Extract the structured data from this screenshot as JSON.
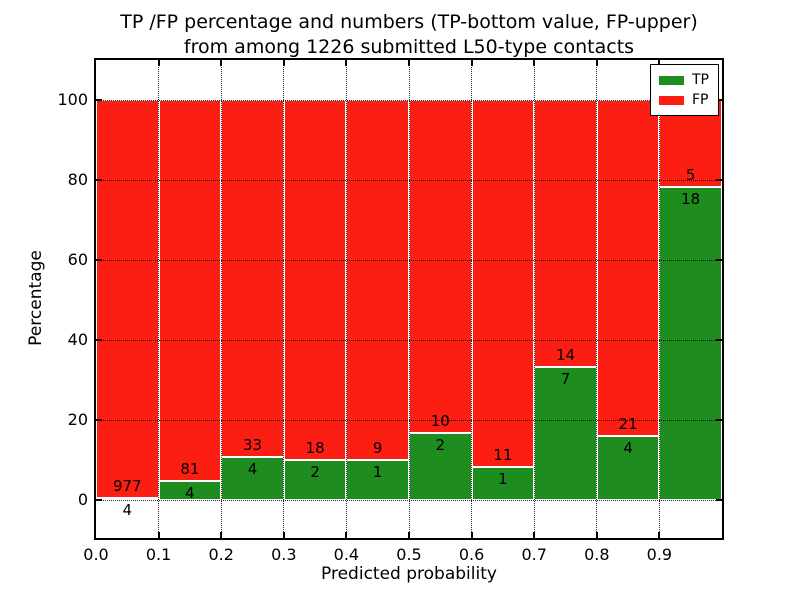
{
  "chart_data": {
    "type": "bar",
    "stacked": true,
    "title_line1": "TP /FP percentage and numbers (TP-bottom value, FP-upper)",
    "title_line2": "from among 1226 submitted L50-type contacts",
    "xlabel": "Predicted probability",
    "ylabel": "Percentage",
    "total_contacts": 1226,
    "x_tick_labels": [
      "0.0",
      "0.1",
      "0.2",
      "0.3",
      "0.4",
      "0.5",
      "0.6",
      "0.7",
      "0.8",
      "0.9"
    ],
    "y_ticks": [
      0,
      20,
      40,
      60,
      80,
      100
    ],
    "xlim": [
      0.0,
      1.0
    ],
    "ylim": [
      -9.5,
      110
    ],
    "grid": "dotted",
    "bin_width": 0.1,
    "bins": [
      {
        "x_start": "0.0",
        "tp": 4,
        "fp": 977
      },
      {
        "x_start": "0.1",
        "tp": 4,
        "fp": 81
      },
      {
        "x_start": "0.2",
        "tp": 4,
        "fp": 33
      },
      {
        "x_start": "0.3",
        "tp": 2,
        "fp": 18
      },
      {
        "x_start": "0.4",
        "tp": 1,
        "fp": 9
      },
      {
        "x_start": "0.5",
        "tp": 2,
        "fp": 10
      },
      {
        "x_start": "0.6",
        "tp": 1,
        "fp": 11
      },
      {
        "x_start": "0.7",
        "tp": 7,
        "fp": 14
      },
      {
        "x_start": "0.8",
        "tp": 4,
        "fp": 21
      },
      {
        "x_start": "0.9",
        "tp": 18,
        "fp": 5
      }
    ],
    "tp_percentages": [
      0.41,
      4.71,
      10.81,
      10.0,
      10.0,
      16.67,
      8.33,
      33.33,
      16.0,
      78.26
    ],
    "legend": [
      {
        "label": "TP",
        "color": "#1e8c1e"
      },
      {
        "label": "FP",
        "color": "#fc1d13"
      }
    ],
    "legend_position": "upper right",
    "colors": {
      "tp": "#1e8c1e",
      "fp": "#fc1d13",
      "background": "#ffffff",
      "frame": "#000000",
      "grid": "#000000"
    }
  }
}
